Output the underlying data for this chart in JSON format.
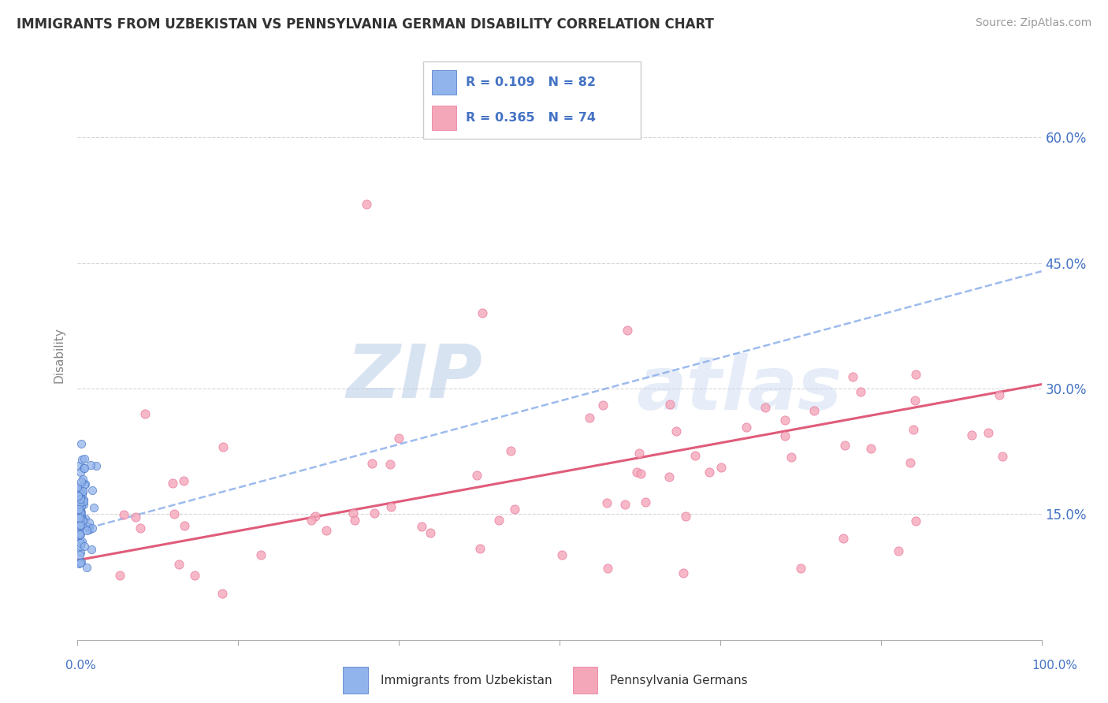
{
  "title": "IMMIGRANTS FROM UZBEKISTAN VS PENNSYLVANIA GERMAN DISABILITY CORRELATION CHART",
  "source": "Source: ZipAtlas.com",
  "ylabel": "Disability",
  "y_tick_labels": [
    "15.0%",
    "30.0%",
    "45.0%",
    "60.0%"
  ],
  "y_tick_values": [
    0.15,
    0.3,
    0.45,
    0.6
  ],
  "x_lim": [
    0.0,
    1.0
  ],
  "y_lim": [
    0.0,
    0.68
  ],
  "color_blue": "#92B4EC",
  "color_blue_edge": "#4472C4",
  "color_pink": "#F4A7B9",
  "color_pink_edge": "#E8729A",
  "color_trend_blue": "#92B4EC",
  "color_trend_pink": "#E05C7A",
  "watermark": "ZIPatlas",
  "watermark_color": "#C8D8F0",
  "legend_label1": "Immigrants from Uzbekistan",
  "legend_label2": "Pennsylvania Germans",
  "title_color": "#333333",
  "axis_label_color": "#4472C4",
  "trend_blue_x0": 0.0,
  "trend_blue_y0": 0.13,
  "trend_blue_x1": 1.0,
  "trend_blue_y1": 0.44,
  "trend_pink_x0": 0.0,
  "trend_pink_y0": 0.095,
  "trend_pink_x1": 1.0,
  "trend_pink_y1": 0.305
}
